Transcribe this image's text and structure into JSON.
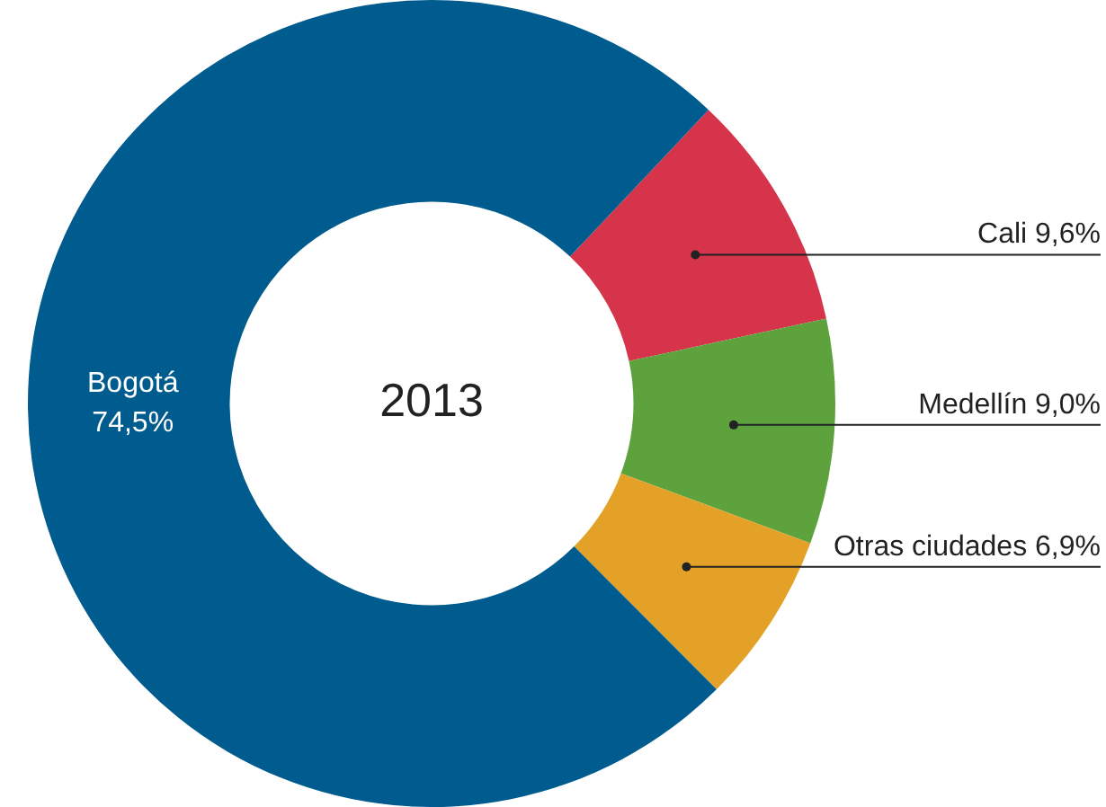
{
  "chart_data": {
    "type": "donut",
    "title": "2013",
    "categories": [
      "Cali",
      "Medellín",
      "Otras ciudades",
      "Bogotá"
    ],
    "values": [
      9.6,
      9.0,
      6.9,
      74.5
    ],
    "value_labels": [
      "9,6%",
      "9,0%",
      "6,9%",
      "74,5%"
    ],
    "colors": [
      "#d5344b",
      "#5da23c",
      "#e4a128",
      "#005b8e"
    ],
    "legend": false
  }
}
